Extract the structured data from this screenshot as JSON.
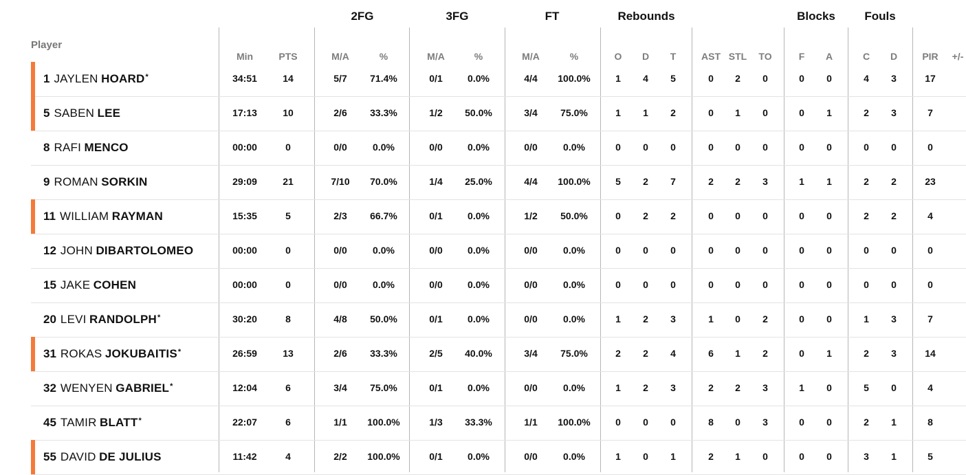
{
  "groups": {
    "fg2": "2FG",
    "fg3": "3FG",
    "ft": "FT",
    "rebounds": "Rebounds",
    "blocks": "Blocks",
    "fouls": "Fouls"
  },
  "headers": {
    "player": "Player",
    "min": "Min",
    "pts": "PTS",
    "fg2_ma": "M/A",
    "fg2_pct": "%",
    "fg3_ma": "M/A",
    "fg3_pct": "%",
    "ft_ma": "M/A",
    "ft_pct": "%",
    "reb_o": "O",
    "reb_d": "D",
    "reb_t": "T",
    "ast": "AST",
    "stl": "STL",
    "to": "TO",
    "blk_f": "F",
    "blk_a": "A",
    "foul_c": "C",
    "foul_d": "D",
    "pir": "PIR",
    "plusminus": "+/-"
  },
  "colors": {
    "accent": "#f47a3a"
  },
  "players": [
    {
      "number": "1",
      "first": "JAYLEN",
      "last": "HOARD",
      "star": "*",
      "bar": true,
      "min": "34:51",
      "pts": "14",
      "fg2_ma": "5/7",
      "fg2_pct": "71.4%",
      "fg3_ma": "0/1",
      "fg3_pct": "0.0%",
      "ft_ma": "4/4",
      "ft_pct": "100.0%",
      "reb_o": "1",
      "reb_d": "4",
      "reb_t": "5",
      "ast": "0",
      "stl": "2",
      "to": "0",
      "blk_f": "0",
      "blk_a": "0",
      "foul_c": "4",
      "foul_d": "3",
      "pir": "17"
    },
    {
      "number": "5",
      "first": "SABEN",
      "last": "LEE",
      "star": "",
      "bar": true,
      "min": "17:13",
      "pts": "10",
      "fg2_ma": "2/6",
      "fg2_pct": "33.3%",
      "fg3_ma": "1/2",
      "fg3_pct": "50.0%",
      "ft_ma": "3/4",
      "ft_pct": "75.0%",
      "reb_o": "1",
      "reb_d": "1",
      "reb_t": "2",
      "ast": "0",
      "stl": "1",
      "to": "0",
      "blk_f": "0",
      "blk_a": "1",
      "foul_c": "2",
      "foul_d": "3",
      "pir": "7"
    },
    {
      "number": "8",
      "first": "RAFI",
      "last": "MENCO",
      "star": "",
      "bar": false,
      "min": "00:00",
      "pts": "0",
      "fg2_ma": "0/0",
      "fg2_pct": "0.0%",
      "fg3_ma": "0/0",
      "fg3_pct": "0.0%",
      "ft_ma": "0/0",
      "ft_pct": "0.0%",
      "reb_o": "0",
      "reb_d": "0",
      "reb_t": "0",
      "ast": "0",
      "stl": "0",
      "to": "0",
      "blk_f": "0",
      "blk_a": "0",
      "foul_c": "0",
      "foul_d": "0",
      "pir": "0"
    },
    {
      "number": "9",
      "first": "ROMAN",
      "last": "SORKIN",
      "star": "",
      "bar": false,
      "min": "29:09",
      "pts": "21",
      "fg2_ma": "7/10",
      "fg2_pct": "70.0%",
      "fg3_ma": "1/4",
      "fg3_pct": "25.0%",
      "ft_ma": "4/4",
      "ft_pct": "100.0%",
      "reb_o": "5",
      "reb_d": "2",
      "reb_t": "7",
      "ast": "2",
      "stl": "2",
      "to": "3",
      "blk_f": "1",
      "blk_a": "1",
      "foul_c": "2",
      "foul_d": "2",
      "pir": "23"
    },
    {
      "number": "11",
      "first": "WILLIAM",
      "last": "RAYMAN",
      "star": "",
      "bar": true,
      "min": "15:35",
      "pts": "5",
      "fg2_ma": "2/3",
      "fg2_pct": "66.7%",
      "fg3_ma": "0/1",
      "fg3_pct": "0.0%",
      "ft_ma": "1/2",
      "ft_pct": "50.0%",
      "reb_o": "0",
      "reb_d": "2",
      "reb_t": "2",
      "ast": "0",
      "stl": "0",
      "to": "0",
      "blk_f": "0",
      "blk_a": "0",
      "foul_c": "2",
      "foul_d": "2",
      "pir": "4"
    },
    {
      "number": "12",
      "first": "JOHN",
      "last": "DIBARTOLOMEO",
      "star": "",
      "bar": false,
      "min": "00:00",
      "pts": "0",
      "fg2_ma": "0/0",
      "fg2_pct": "0.0%",
      "fg3_ma": "0/0",
      "fg3_pct": "0.0%",
      "ft_ma": "0/0",
      "ft_pct": "0.0%",
      "reb_o": "0",
      "reb_d": "0",
      "reb_t": "0",
      "ast": "0",
      "stl": "0",
      "to": "0",
      "blk_f": "0",
      "blk_a": "0",
      "foul_c": "0",
      "foul_d": "0",
      "pir": "0"
    },
    {
      "number": "15",
      "first": "JAKE",
      "last": "COHEN",
      "star": "",
      "bar": false,
      "min": "00:00",
      "pts": "0",
      "fg2_ma": "0/0",
      "fg2_pct": "0.0%",
      "fg3_ma": "0/0",
      "fg3_pct": "0.0%",
      "ft_ma": "0/0",
      "ft_pct": "0.0%",
      "reb_o": "0",
      "reb_d": "0",
      "reb_t": "0",
      "ast": "0",
      "stl": "0",
      "to": "0",
      "blk_f": "0",
      "blk_a": "0",
      "foul_c": "0",
      "foul_d": "0",
      "pir": "0"
    },
    {
      "number": "20",
      "first": "LEVI",
      "last": "RANDOLPH",
      "star": "*",
      "bar": false,
      "min": "30:20",
      "pts": "8",
      "fg2_ma": "4/8",
      "fg2_pct": "50.0%",
      "fg3_ma": "0/1",
      "fg3_pct": "0.0%",
      "ft_ma": "0/0",
      "ft_pct": "0.0%",
      "reb_o": "1",
      "reb_d": "2",
      "reb_t": "3",
      "ast": "1",
      "stl": "0",
      "to": "2",
      "blk_f": "0",
      "blk_a": "0",
      "foul_c": "1",
      "foul_d": "3",
      "pir": "7"
    },
    {
      "number": "31",
      "first": "ROKAS",
      "last": "JOKUBAITIS",
      "star": "*",
      "bar": true,
      "min": "26:59",
      "pts": "13",
      "fg2_ma": "2/6",
      "fg2_pct": "33.3%",
      "fg3_ma": "2/5",
      "fg3_pct": "40.0%",
      "ft_ma": "3/4",
      "ft_pct": "75.0%",
      "reb_o": "2",
      "reb_d": "2",
      "reb_t": "4",
      "ast": "6",
      "stl": "1",
      "to": "2",
      "blk_f": "0",
      "blk_a": "1",
      "foul_c": "2",
      "foul_d": "3",
      "pir": "14"
    },
    {
      "number": "32",
      "first": "WENYEN",
      "last": "GABRIEL",
      "star": "*",
      "bar": false,
      "min": "12:04",
      "pts": "6",
      "fg2_ma": "3/4",
      "fg2_pct": "75.0%",
      "fg3_ma": "0/1",
      "fg3_pct": "0.0%",
      "ft_ma": "0/0",
      "ft_pct": "0.0%",
      "reb_o": "1",
      "reb_d": "2",
      "reb_t": "3",
      "ast": "2",
      "stl": "2",
      "to": "3",
      "blk_f": "1",
      "blk_a": "0",
      "foul_c": "5",
      "foul_d": "0",
      "pir": "4"
    },
    {
      "number": "45",
      "first": "TAMIR",
      "last": "BLATT",
      "star": "*",
      "bar": false,
      "min": "22:07",
      "pts": "6",
      "fg2_ma": "1/1",
      "fg2_pct": "100.0%",
      "fg3_ma": "1/3",
      "fg3_pct": "33.3%",
      "ft_ma": "1/1",
      "ft_pct": "100.0%",
      "reb_o": "0",
      "reb_d": "0",
      "reb_t": "0",
      "ast": "8",
      "stl": "0",
      "to": "3",
      "blk_f": "0",
      "blk_a": "0",
      "foul_c": "2",
      "foul_d": "1",
      "pir": "8"
    },
    {
      "number": "55",
      "first": "DAVID",
      "last": "DE JULIUS",
      "star": "",
      "bar": true,
      "min": "11:42",
      "pts": "4",
      "fg2_ma": "2/2",
      "fg2_pct": "100.0%",
      "fg3_ma": "0/1",
      "fg3_pct": "0.0%",
      "ft_ma": "0/0",
      "ft_pct": "0.0%",
      "reb_o": "1",
      "reb_d": "0",
      "reb_t": "1",
      "ast": "2",
      "stl": "1",
      "to": "0",
      "blk_f": "0",
      "blk_a": "0",
      "foul_c": "3",
      "foul_d": "1",
      "pir": "5"
    }
  ]
}
